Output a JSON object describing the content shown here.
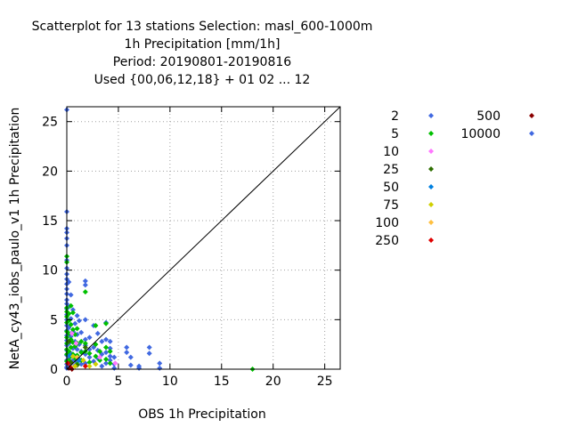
{
  "title_lines": [
    "Scatterplot for   13 stations Selection: masl_600-1000m",
    "1h Precipitation [mm/1h]",
    "Period: 20190801-20190816",
    "Used {00,06,12,18} + 01  02 ... 12"
  ],
  "chart_data": {
    "type": "scatter",
    "xlabel": "OBS 1h Precipitation",
    "ylabel": "NetA_cy43_iobs_paulo_v1 1h Precipitation",
    "xlim": [
      0,
      26.5
    ],
    "ylim": [
      0,
      26.5
    ],
    "xticks": [
      0,
      5,
      10,
      15,
      20,
      25
    ],
    "yticks": [
      0,
      5,
      10,
      15,
      20,
      25
    ],
    "grid": true,
    "diagonal_line": true,
    "legend_placement": "right",
    "series": [
      {
        "name": "2",
        "color": "#4169e1",
        "points": [
          [
            0,
            26.2
          ],
          [
            0,
            15.9
          ],
          [
            0,
            14.2
          ],
          [
            0,
            13.8
          ],
          [
            0,
            13.2
          ],
          [
            0,
            12.5
          ],
          [
            0,
            11.0
          ],
          [
            0,
            10.2
          ],
          [
            0,
            9.6
          ],
          [
            0,
            9.1
          ],
          [
            0,
            8.6
          ],
          [
            0,
            8.1
          ],
          [
            0,
            7.6
          ],
          [
            0,
            7.0
          ],
          [
            0,
            6.6
          ],
          [
            0,
            6.1
          ],
          [
            0,
            5.5
          ],
          [
            0,
            5.0
          ],
          [
            0,
            4.4
          ],
          [
            0,
            3.9
          ],
          [
            0,
            3.4
          ],
          [
            0,
            2.9
          ],
          [
            0,
            2.4
          ],
          [
            0,
            1.9
          ],
          [
            0,
            1.4
          ],
          [
            0,
            0.9
          ],
          [
            0,
            0.5
          ],
          [
            0,
            0.1
          ],
          [
            0.2,
            8.8
          ],
          [
            0.2,
            6.3
          ],
          [
            0.2,
            4.2
          ],
          [
            0.2,
            2.6
          ],
          [
            0.2,
            1.1
          ],
          [
            0.2,
            0.3
          ],
          [
            0.4,
            7.5
          ],
          [
            0.4,
            5.1
          ],
          [
            0.4,
            3.3
          ],
          [
            0.4,
            1.6
          ],
          [
            0.4,
            0.6
          ],
          [
            0.6,
            6.0
          ],
          [
            0.6,
            3.8
          ],
          [
            0.6,
            2.1
          ],
          [
            0.6,
            0.9
          ],
          [
            0.8,
            4.6
          ],
          [
            0.8,
            2.8
          ],
          [
            0.8,
            1.3
          ],
          [
            0.8,
            0.4
          ],
          [
            1.0,
            5.4
          ],
          [
            1.0,
            3.5
          ],
          [
            1.0,
            2.0
          ],
          [
            1.0,
            0.7
          ],
          [
            1.2,
            4.9
          ],
          [
            1.2,
            2.5
          ],
          [
            1.2,
            1.0
          ],
          [
            1.4,
            3.7
          ],
          [
            1.4,
            1.8
          ],
          [
            1.4,
            0.5
          ],
          [
            1.8,
            8.9
          ],
          [
            1.8,
            8.5
          ],
          [
            1.8,
            5.0
          ],
          [
            1.8,
            3.0
          ],
          [
            1.8,
            2.4
          ],
          [
            1.8,
            1.5
          ],
          [
            1.8,
            0.6
          ],
          [
            2.2,
            3.2
          ],
          [
            2.2,
            2.0
          ],
          [
            2.2,
            1.2
          ],
          [
            2.6,
            4.4
          ],
          [
            2.6,
            2.2
          ],
          [
            2.6,
            0.8
          ],
          [
            3.0,
            3.6
          ],
          [
            3.0,
            1.9
          ],
          [
            3.0,
            1.1
          ],
          [
            3.4,
            2.8
          ],
          [
            3.4,
            1.5
          ],
          [
            3.4,
            0.3
          ],
          [
            3.8,
            4.7
          ],
          [
            3.8,
            3.0
          ],
          [
            3.8,
            1.7
          ],
          [
            3.8,
            0.6
          ],
          [
            4.2,
            2.8
          ],
          [
            4.2,
            2.1
          ],
          [
            4.2,
            1.3
          ],
          [
            4.2,
            0.9
          ],
          [
            4.6,
            1.2
          ],
          [
            4.6,
            0.5
          ],
          [
            4.6,
            0.1
          ],
          [
            5.8,
            2.2
          ],
          [
            5.8,
            1.7
          ],
          [
            6.2,
            1.2
          ],
          [
            6.2,
            0.4
          ],
          [
            7.0,
            0.3
          ],
          [
            7.0,
            0.1
          ],
          [
            8.0,
            2.2
          ],
          [
            8.0,
            1.6
          ],
          [
            9.0,
            0.6
          ],
          [
            9.0,
            0.1
          ]
        ]
      },
      {
        "name": "5",
        "color": "#00c000",
        "points": [
          [
            0,
            11.4
          ],
          [
            0,
            10.8
          ],
          [
            0,
            6.2
          ],
          [
            0,
            5.8
          ],
          [
            0,
            5.3
          ],
          [
            0,
            4.7
          ],
          [
            0,
            3.8
          ],
          [
            0,
            3.2
          ],
          [
            0,
            2.6
          ],
          [
            0,
            2.0
          ],
          [
            0,
            1.5
          ],
          [
            0,
            0.8
          ],
          [
            0.2,
            5.6
          ],
          [
            0.2,
            4.9
          ],
          [
            0.2,
            3.6
          ],
          [
            0.2,
            2.8
          ],
          [
            0.2,
            1.8
          ],
          [
            0.2,
            0.9
          ],
          [
            0.4,
            6.4
          ],
          [
            0.4,
            4.5
          ],
          [
            0.4,
            3.0
          ],
          [
            0.4,
            2.2
          ],
          [
            0.4,
            1.3
          ],
          [
            0.6,
            5.7
          ],
          [
            0.6,
            4.0
          ],
          [
            0.6,
            2.7
          ],
          [
            0.6,
            1.5
          ],
          [
            0.8,
            3.5
          ],
          [
            0.8,
            2.3
          ],
          [
            0.8,
            1.1
          ],
          [
            1.0,
            4.1
          ],
          [
            1.0,
            2.6
          ],
          [
            1.0,
            1.4
          ],
          [
            1.0,
            0.5
          ],
          [
            1.4,
            2.8
          ],
          [
            1.4,
            1.7
          ],
          [
            1.4,
            0.9
          ],
          [
            1.8,
            7.8
          ],
          [
            1.8,
            2.6
          ],
          [
            1.8,
            1.8
          ],
          [
            2.2,
            1.6
          ],
          [
            2.2,
            0.7
          ],
          [
            2.8,
            4.4
          ],
          [
            2.8,
            2.5
          ],
          [
            2.8,
            1.3
          ],
          [
            3.2,
            1.8
          ],
          [
            3.2,
            0.9
          ],
          [
            3.8,
            4.6
          ],
          [
            3.8,
            2.2
          ],
          [
            3.8,
            1.0
          ],
          [
            4.2,
            1.8
          ],
          [
            4.2,
            0.6
          ],
          [
            18.0,
            0.0
          ]
        ]
      },
      {
        "name": "10",
        "color": "#ff77ff",
        "points": [
          [
            0.5,
            3.6
          ],
          [
            0.9,
            2.6
          ],
          [
            3.2,
            1.2
          ],
          [
            4.7,
            0.6
          ]
        ]
      },
      {
        "name": "25",
        "color": "#2e6e00",
        "points": [
          [
            0.2,
            2.8
          ],
          [
            0.4,
            0.7
          ],
          [
            1.0,
            0.4
          ],
          [
            1.8,
            2.2
          ]
        ]
      },
      {
        "name": "50",
        "color": "#0080e0",
        "points": [
          [
            0.3,
            1.4
          ],
          [
            1.2,
            0.9
          ]
        ]
      },
      {
        "name": "75",
        "color": "#d0d000",
        "points": [
          [
            0.6,
            1.3
          ],
          [
            0.8,
            0.3
          ],
          [
            1.6,
            0.9
          ],
          [
            2.2,
            0.3
          ],
          [
            2.8,
            0.5
          ]
        ]
      },
      {
        "name": "100",
        "color": "#ffc040",
        "points": [
          [
            0.4,
            0.2
          ],
          [
            1.0,
            1.2
          ]
        ]
      },
      {
        "name": "250",
        "color": "#e00000",
        "points": [
          [
            0.1,
            0.6
          ],
          [
            0.3,
            0.2
          ],
          [
            1.8,
            0.3
          ]
        ]
      },
      {
        "name": "500",
        "color": "#8b0000",
        "points": [
          [
            0.2,
            0.1
          ],
          [
            0.5,
            0.0
          ]
        ]
      },
      {
        "name": "10000",
        "color": "#4169e1",
        "points": [
          [
            0.0,
            0.2
          ]
        ]
      }
    ]
  }
}
